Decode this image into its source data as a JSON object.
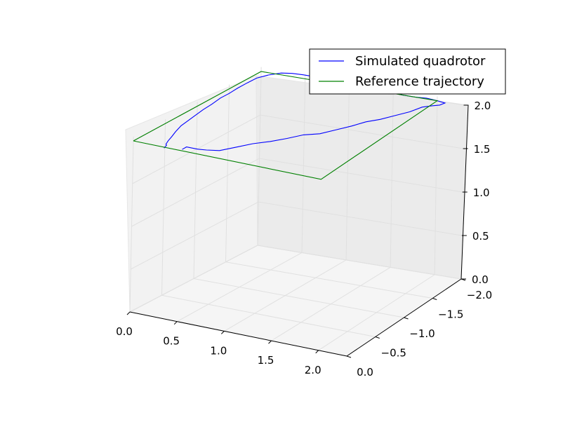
{
  "chart_data": {
    "type": "line",
    "projection": "3d",
    "grid": true,
    "legend_placement": "top-right",
    "axes": {
      "x": {
        "range": [
          0.0,
          2.3
        ],
        "tick_labels": [
          "0.0",
          "0.5",
          "1.0",
          "1.5",
          "2.0"
        ]
      },
      "y": {
        "range": [
          -2.0,
          0.0
        ],
        "tick_labels": [
          "−2.0",
          "−1.5",
          "−1.0",
          "−0.5",
          "0.0"
        ]
      },
      "z": {
        "range": [
          0.0,
          2.0
        ],
        "tick_labels": [
          "0.0",
          "0.5",
          "1.0",
          "1.5",
          "2.0"
        ]
      }
    },
    "series": [
      {
        "name": "Simulated quadrotor",
        "color": "#0000ff",
        "points": [
          [
            0.5,
            -0.03,
            2.0
          ],
          [
            0.5,
            -0.1,
            2.0
          ],
          [
            0.62,
            -0.1,
            2.0
          ],
          [
            0.7,
            -0.12,
            2.0
          ],
          [
            0.8,
            -0.18,
            1.99
          ],
          [
            0.9,
            -0.3,
            2.0
          ],
          [
            1.0,
            -0.42,
            2.01
          ],
          [
            1.1,
            -0.55,
            2.0
          ],
          [
            1.2,
            -0.68,
            2.0
          ],
          [
            1.3,
            -0.8,
            2.01
          ],
          [
            1.4,
            -0.92,
            1.99
          ],
          [
            1.5,
            -1.05,
            2.0
          ],
          [
            1.58,
            -1.18,
            2.0
          ],
          [
            1.66,
            -1.3,
            2.01
          ],
          [
            1.74,
            -1.42,
            2.0
          ],
          [
            1.82,
            -1.55,
            2.0
          ],
          [
            1.9,
            -1.68,
            2.0
          ],
          [
            1.96,
            -1.8,
            2.01
          ],
          [
            2.02,
            -1.88,
            2.0
          ],
          [
            2.08,
            -1.92,
            2.0
          ],
          [
            2.1,
            -1.98,
            2.0
          ],
          [
            2.0,
            -2.0,
            2.0
          ],
          [
            1.88,
            -2.0,
            2.01
          ],
          [
            1.75,
            -2.0,
            2.0
          ],
          [
            1.6,
            -2.0,
            2.0
          ],
          [
            1.45,
            -2.02,
            2.0
          ],
          [
            1.3,
            -2.03,
            2.01
          ],
          [
            1.15,
            -2.04,
            2.0
          ],
          [
            1.0,
            -2.05,
            2.0
          ],
          [
            0.85,
            -2.06,
            2.0
          ],
          [
            0.7,
            -2.07,
            2.01
          ],
          [
            0.55,
            -2.08,
            2.0
          ],
          [
            0.42,
            -2.08,
            2.0
          ],
          [
            0.3,
            -2.07,
            2.0
          ],
          [
            0.2,
            -2.04,
            2.0
          ],
          [
            0.12,
            -1.95,
            2.0
          ],
          [
            0.08,
            -1.82,
            2.01
          ],
          [
            0.06,
            -1.7,
            2.0
          ],
          [
            0.06,
            -1.55,
            2.0
          ],
          [
            0.07,
            -1.4,
            2.0
          ],
          [
            0.08,
            -1.25,
            2.01
          ],
          [
            0.09,
            -1.1,
            2.0
          ],
          [
            0.1,
            -0.95,
            2.0
          ],
          [
            0.12,
            -0.8,
            2.0
          ],
          [
            0.14,
            -0.65,
            2.0
          ],
          [
            0.17,
            -0.5,
            2.01
          ],
          [
            0.2,
            -0.37,
            2.0
          ],
          [
            0.24,
            -0.25,
            2.0
          ],
          [
            0.27,
            -0.15,
            2.0
          ],
          [
            0.3,
            -0.07,
            2.0
          ],
          [
            0.32,
            -0.05,
            2.0
          ],
          [
            0.34,
            0.02,
            2.0
          ]
        ]
      },
      {
        "name": "Reference trajectory",
        "color": "#008000",
        "points": [
          [
            0.0,
            0.0,
            2.0
          ],
          [
            2.0,
            0.0,
            2.0
          ],
          [
            2.0,
            -2.0,
            2.0
          ],
          [
            0.0,
            -2.0,
            2.0
          ],
          [
            0.0,
            0.0,
            2.0
          ]
        ]
      }
    ]
  }
}
